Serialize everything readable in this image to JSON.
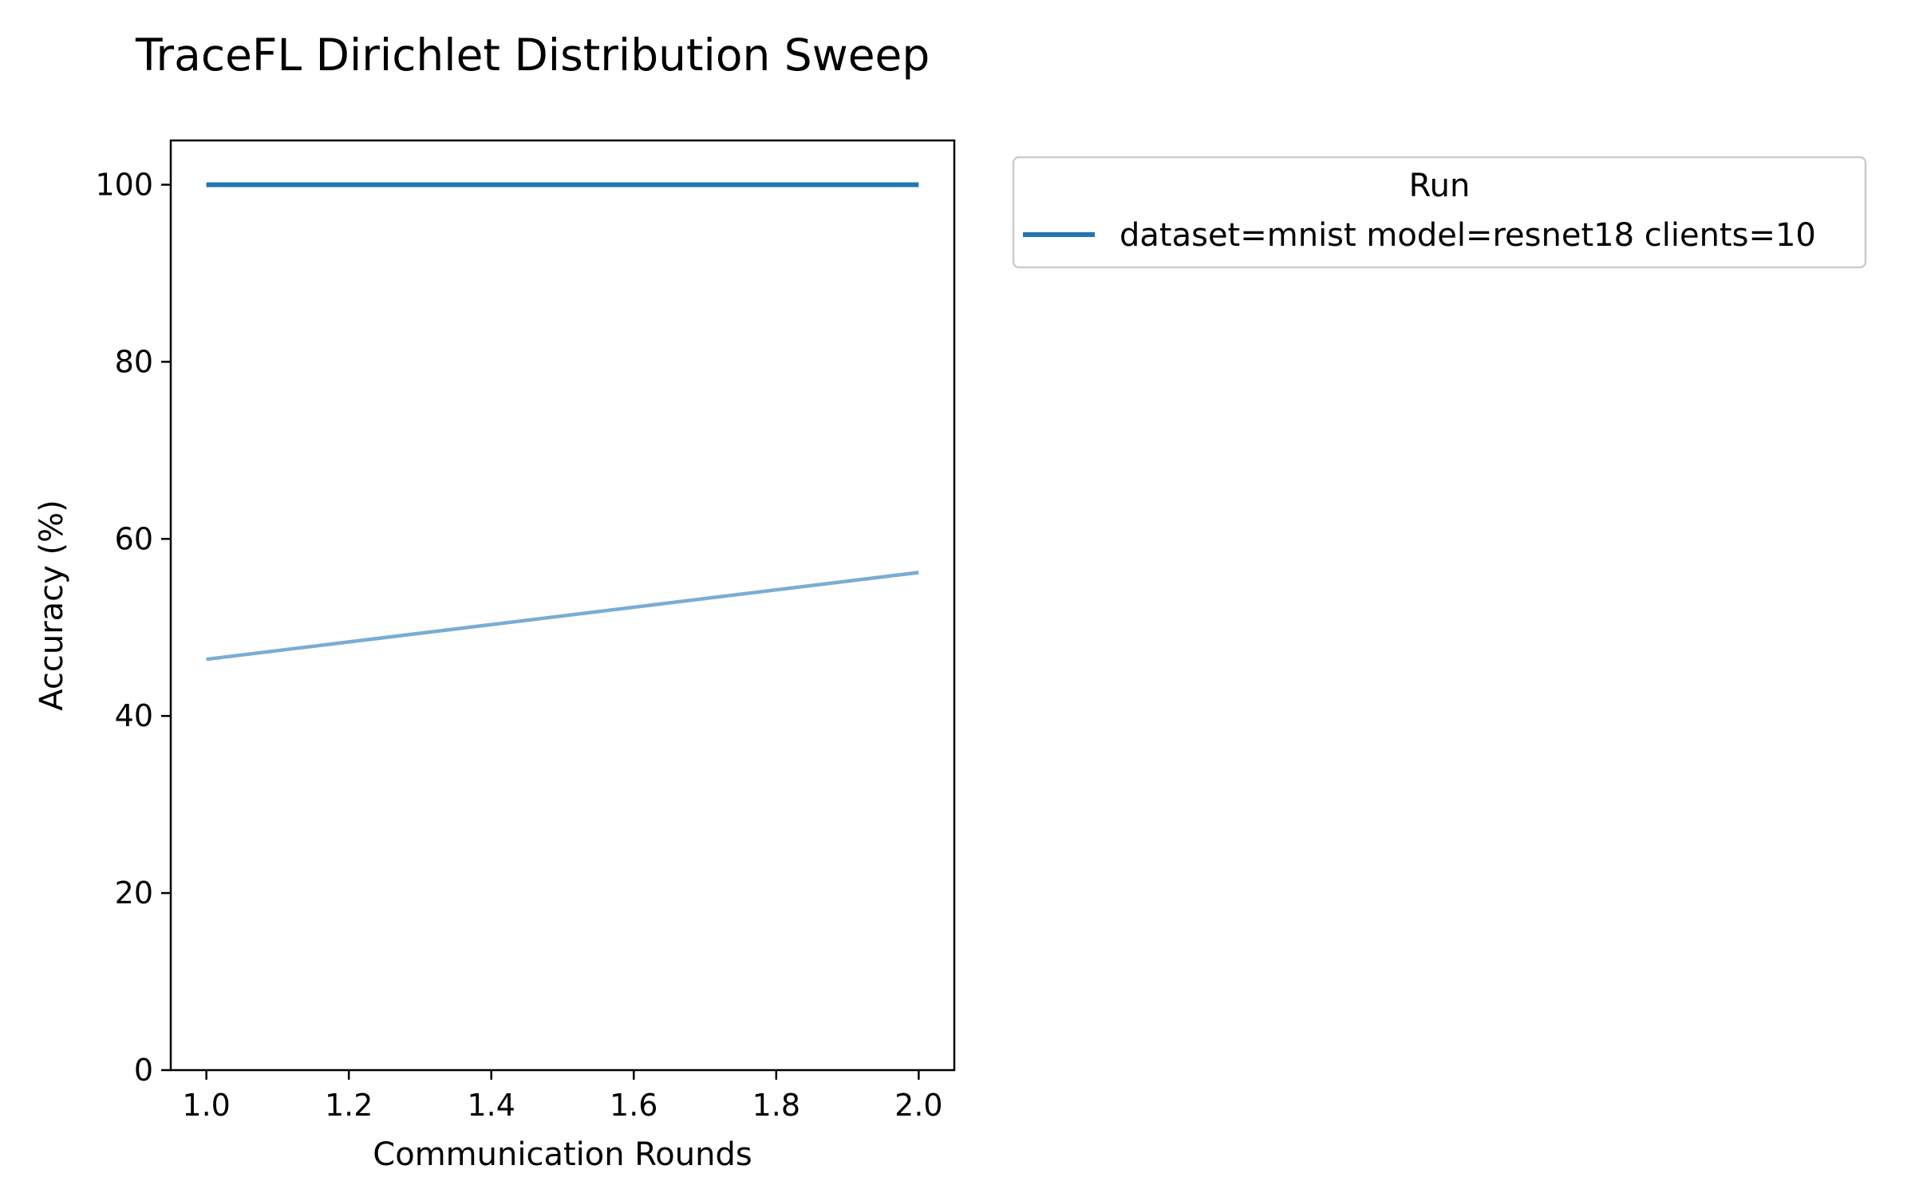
{
  "chart_data": {
    "type": "line",
    "title": "TraceFL Dirichlet Distribution Sweep",
    "xlabel": "Communication Rounds",
    "ylabel": "Accuracy (%)",
    "xlim": [
      0.95,
      2.05
    ],
    "ylim": [
      0,
      105
    ],
    "xticks": [
      1.0,
      1.2,
      1.4,
      1.6,
      1.8,
      2.0
    ],
    "xtick_labels": [
      "1.0",
      "1.2",
      "1.4",
      "1.6",
      "1.8",
      "2.0"
    ],
    "yticks": [
      0,
      20,
      40,
      60,
      80,
      100
    ],
    "ytick_labels": [
      "0",
      "20",
      "40",
      "60",
      "80",
      "100"
    ],
    "grid": false,
    "legend": {
      "title": "Run",
      "placement": "outside-upper-right",
      "entries": [
        "dataset=mnist model=resnet18 clients=10"
      ]
    },
    "series": [
      {
        "name": "dataset=mnist model=resnet18 clients=10",
        "x": [
          1.0,
          2.0
        ],
        "y": [
          100.0,
          100.0
        ],
        "color": "#1f77b4",
        "alpha": 1.0,
        "in_legend": true
      },
      {
        "x": [
          1.0,
          2.0
        ],
        "y": [
          46.4,
          56.2
        ],
        "color": "#1f77b4",
        "alpha": 0.6,
        "in_legend": false
      }
    ]
  }
}
